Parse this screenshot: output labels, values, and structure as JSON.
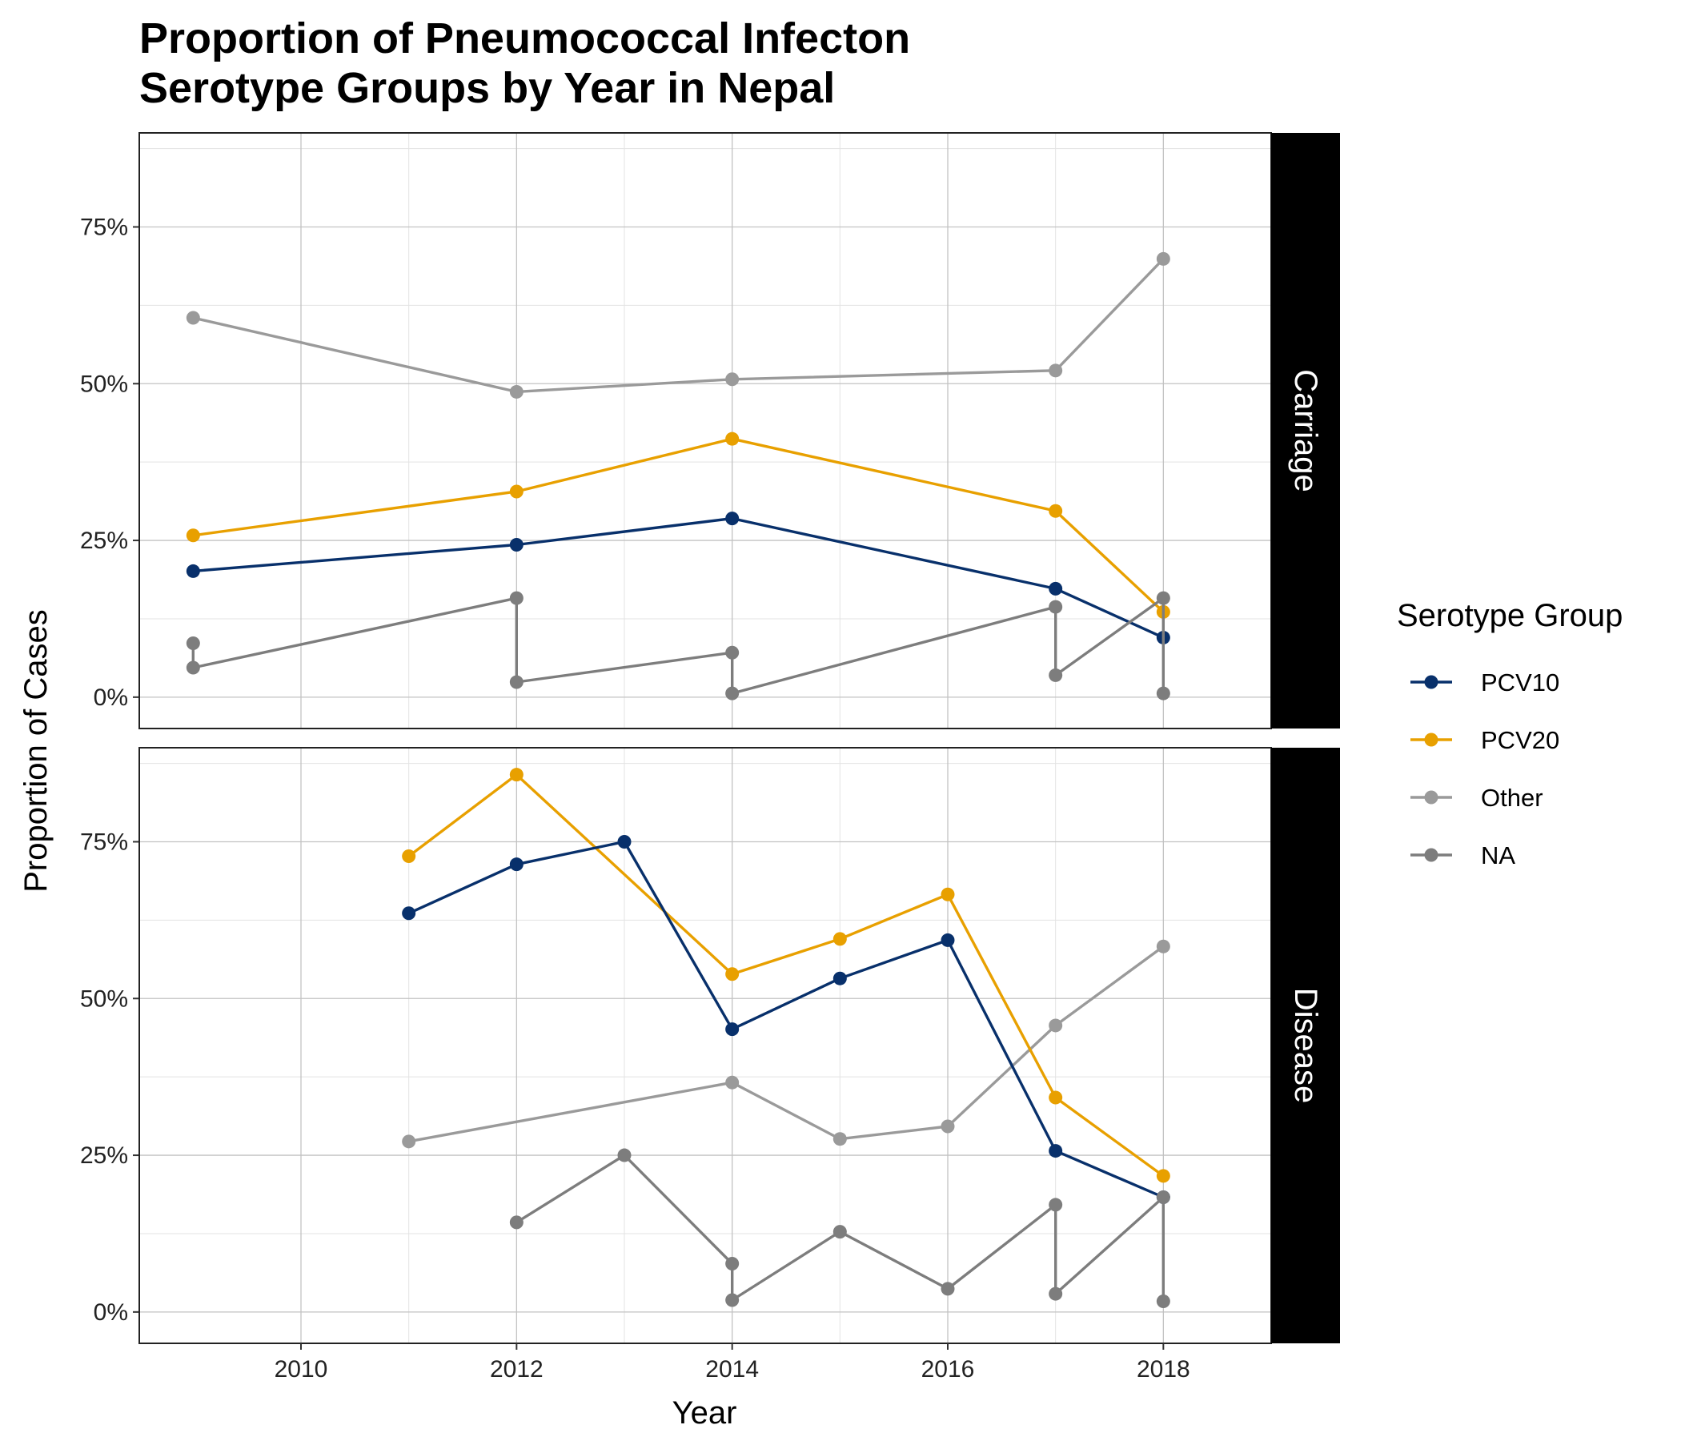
{
  "chart_data": {
    "type": "line",
    "title": [
      "Proportion of Pneumococcal Infecton",
      "Serotype Groups by Year in Nepal"
    ],
    "xlabel": "Year",
    "ylabel": "Proportion of Cases",
    "xlim": [
      2008.5,
      2019.0
    ],
    "ylim": [
      -0.05,
      0.9
    ],
    "x_ticks": [
      2010,
      2012,
      2014,
      2016,
      2018
    ],
    "x_tick_labels": [
      "2010",
      "2012",
      "2014",
      "2016",
      "2018"
    ],
    "y_ticks": [
      0,
      0.25,
      0.5,
      0.75
    ],
    "y_tick_labels": [
      "0%",
      "25%",
      "50%",
      "75%"
    ],
    "grid": true,
    "legend": {
      "title": "Serotype Group",
      "placement": "right",
      "entries": [
        {
          "label": "PCV10",
          "color": "#08306b"
        },
        {
          "label": "PCV20",
          "color": "#e8a000"
        },
        {
          "label": "Other",
          "color": "#9a9a9a"
        },
        {
          "label": "NA",
          "color": "#7d7d7d"
        }
      ]
    },
    "facets": [
      {
        "label": "Carriage",
        "series": [
          {
            "name": "Other",
            "color": "#9a9a9a",
            "points": [
              [
                2009,
                0.605
              ],
              [
                2012,
                0.487
              ],
              [
                2014,
                0.507
              ],
              [
                2017,
                0.521
              ],
              [
                2018,
                0.699
              ]
            ]
          },
          {
            "name": "PCV20",
            "color": "#e8a000",
            "points": [
              [
                2009,
                0.258
              ],
              [
                2012,
                0.328
              ],
              [
                2014,
                0.412
              ],
              [
                2017,
                0.297
              ],
              [
                2018,
                0.136
              ]
            ]
          },
          {
            "name": "PCV10",
            "color": "#08306b",
            "points": [
              [
                2009,
                0.201
              ],
              [
                2012,
                0.243
              ],
              [
                2014,
                0.285
              ],
              [
                2017,
                0.173
              ],
              [
                2018,
                0.095
              ]
            ]
          },
          {
            "name": "NA",
            "color": "#7d7d7d",
            "points": [
              [
                2009,
                0.086
              ],
              [
                2009,
                0.047
              ],
              [
                2012,
                0.158
              ],
              [
                2012,
                0.024
              ],
              [
                2014,
                0.071
              ],
              [
                2014,
                0.006
              ],
              [
                2017,
                0.144
              ],
              [
                2017,
                0.035
              ],
              [
                2018,
                0.158
              ],
              [
                2018,
                0.006
              ]
            ]
          }
        ]
      },
      {
        "label": "Disease",
        "series": [
          {
            "name": "Other",
            "color": "#9a9a9a",
            "points": [
              [
                2011,
                0.272
              ],
              [
                2014,
                0.366
              ],
              [
                2015,
                0.276
              ],
              [
                2016,
                0.296
              ],
              [
                2017,
                0.457
              ],
              [
                2018,
                0.583
              ]
            ]
          },
          {
            "name": "PCV20",
            "color": "#e8a000",
            "points": [
              [
                2011,
                0.727
              ],
              [
                2012,
                0.857
              ],
              [
                2014,
                0.539
              ],
              [
                2015,
                0.595
              ],
              [
                2016,
                0.666
              ],
              [
                2017,
                0.342
              ],
              [
                2018,
                0.217
              ]
            ]
          },
          {
            "name": "PCV10",
            "color": "#08306b",
            "points": [
              [
                2011,
                0.636
              ],
              [
                2012,
                0.714
              ],
              [
                2013,
                0.75
              ],
              [
                2014,
                0.451
              ],
              [
                2015,
                0.532
              ],
              [
                2016,
                0.593
              ],
              [
                2017,
                0.257
              ],
              [
                2018,
                0.183
              ]
            ]
          },
          {
            "name": "NA",
            "color": "#7d7d7d",
            "points": [
              [
                2012,
                0.143
              ],
              [
                2013,
                0.25
              ],
              [
                2014,
                0.077
              ],
              [
                2014,
                0.019
              ],
              [
                2015,
                0.128
              ],
              [
                2016,
                0.037
              ],
              [
                2017,
                0.171
              ],
              [
                2017,
                0.029
              ],
              [
                2018,
                0.183
              ],
              [
                2018,
                0.017
              ]
            ]
          }
        ]
      }
    ]
  }
}
